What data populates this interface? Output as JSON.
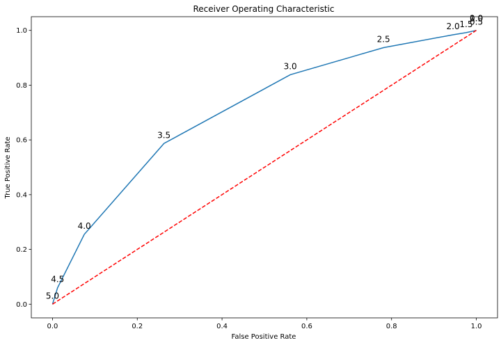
{
  "chart_data": {
    "type": "line",
    "title": "Receiver Operating Characteristic",
    "xlabel": "False Positive Rate",
    "ylabel": "True Positive Rate",
    "xlim": [
      -0.05,
      1.05
    ],
    "ylim": [
      -0.05,
      1.05
    ],
    "grid": false,
    "x_ticks": [
      0.0,
      0.2,
      0.4,
      0.6,
      0.8,
      1.0
    ],
    "y_ticks": [
      0.0,
      0.2,
      0.4,
      0.6,
      0.8,
      1.0
    ],
    "x_tick_labels": [
      "0.0",
      "0.2",
      "0.4",
      "0.6",
      "0.8",
      "1.0"
    ],
    "y_tick_labels": [
      "0.0",
      "0.2",
      "0.4",
      "0.6",
      "0.8",
      "1.0"
    ],
    "series": [
      {
        "color": "#1f77b4",
        "style": "solid",
        "points": [
          {
            "x": 0.0,
            "y": 0.0,
            "label": "5.0"
          },
          {
            "x": 0.012,
            "y": 0.06,
            "label": "4.5"
          },
          {
            "x": 0.075,
            "y": 0.255,
            "label": "4.0"
          },
          {
            "x": 0.263,
            "y": 0.587,
            "label": "3.5"
          },
          {
            "x": 0.561,
            "y": 0.838,
            "label": "3.0"
          },
          {
            "x": 0.781,
            "y": 0.937,
            "label": "2.5"
          },
          {
            "x": 0.945,
            "y": 0.984,
            "label": "2.0"
          },
          {
            "x": 0.976,
            "y": 0.992,
            "label": "1.5"
          },
          {
            "x": 1.0,
            "y": 1.0,
            "label": "1.0"
          },
          {
            "x": 1.0,
            "y": 1.0,
            "label": "0.5"
          },
          {
            "x": 1.0,
            "y": 1.0,
            "label": "0.0"
          }
        ]
      },
      {
        "color": "#ff0000",
        "style": "dashed",
        "points": [
          {
            "x": 0.0,
            "y": 0.0
          },
          {
            "x": 1.0,
            "y": 1.0
          }
        ]
      }
    ]
  }
}
